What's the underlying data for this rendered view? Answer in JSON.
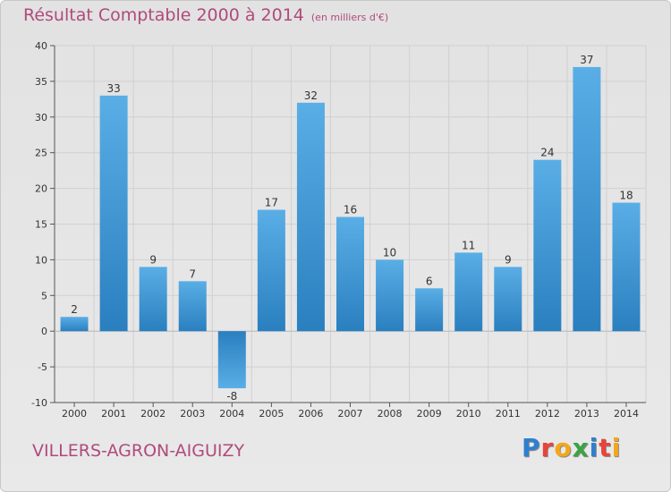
{
  "header": {
    "title": "Résultat Comptable 2000 à 2014",
    "unit": "(en milliers d'€)"
  },
  "footer": {
    "city": "VILLERS-AGRON-AIGUIZY",
    "brand": "Proxiti",
    "brand_letters": [
      {
        "char": "P",
        "color": "#2f7fcf"
      },
      {
        "char": "r",
        "color": "#e8443a"
      },
      {
        "char": "o",
        "color": "#f4a71b"
      },
      {
        "char": "x",
        "color": "#3aa344"
      },
      {
        "char": "i",
        "color": "#2f7fcf"
      },
      {
        "char": "t",
        "color": "#e8443a"
      },
      {
        "char": "i",
        "color": "#f4a71b"
      }
    ]
  },
  "colors": {
    "title": "#b04a7c",
    "bar_top": "#5aaee6",
    "bar_bottom": "#2a7fbf"
  },
  "chart_data": {
    "type": "bar",
    "title": "Résultat Comptable 2000 à 2014",
    "ylabel": "(en milliers d'€)",
    "xlabel": "",
    "categories": [
      "2000",
      "2001",
      "2002",
      "2003",
      "2004",
      "2005",
      "2006",
      "2007",
      "2008",
      "2009",
      "2010",
      "2011",
      "2012",
      "2013",
      "2014"
    ],
    "values": [
      2,
      33,
      9,
      7,
      -8,
      17,
      32,
      16,
      10,
      6,
      11,
      9,
      24,
      37,
      18
    ],
    "value_labels": [
      "2",
      "33",
      "9",
      "7",
      "-8",
      "17",
      "32",
      "16",
      "10",
      "6",
      "11",
      "9",
      "24",
      "37",
      "18"
    ],
    "ylim": [
      -10,
      40
    ],
    "yticks": [
      -10,
      -5,
      0,
      5,
      10,
      15,
      20,
      25,
      30,
      35,
      40
    ],
    "ytick_labels": [
      "-10",
      "-5",
      "0",
      "5",
      "10",
      "15",
      "20",
      "25",
      "30",
      "35",
      "40"
    ],
    "grid": true
  }
}
